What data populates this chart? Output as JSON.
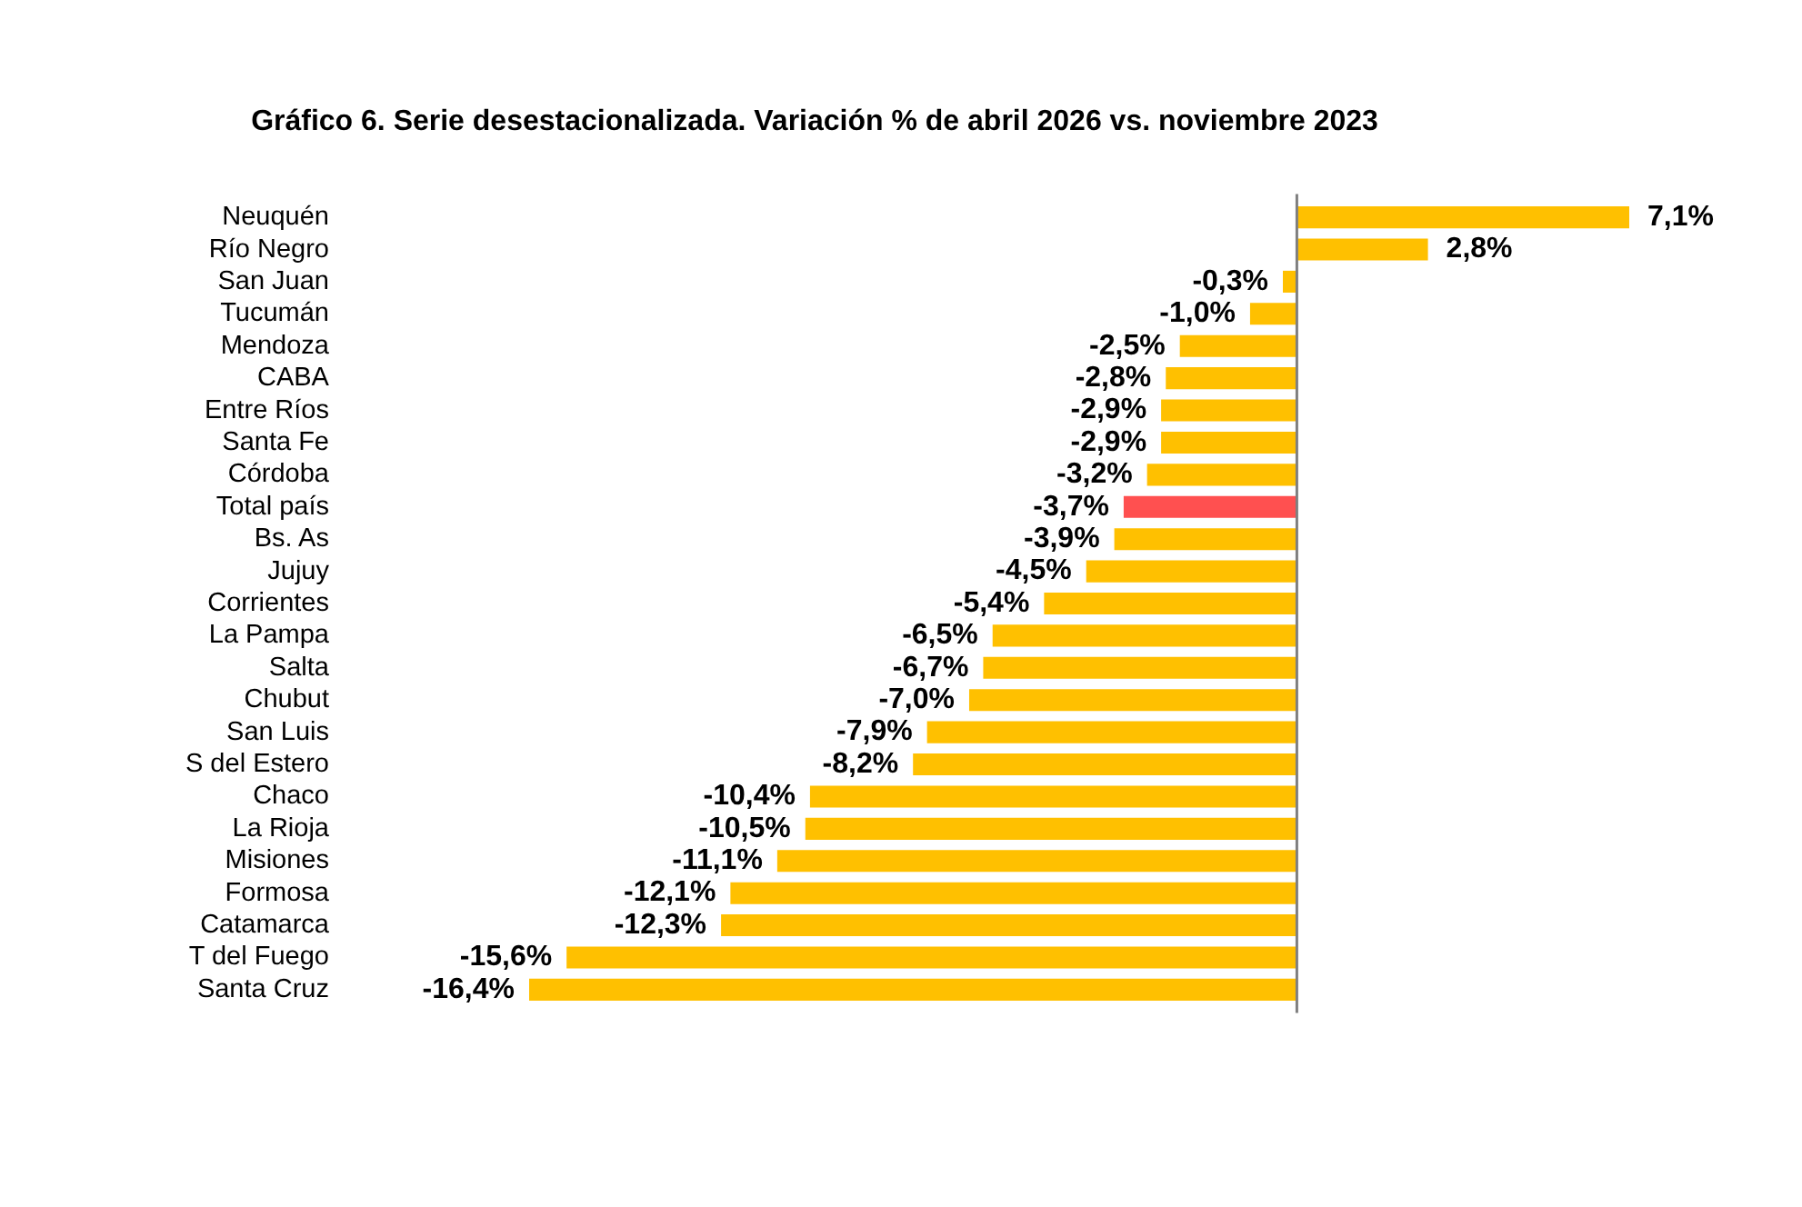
{
  "chart_data": {
    "type": "bar",
    "orientation": "horizontal",
    "title": "Gráfico 6. Serie desestacionalizada. Variación % de abril 2026 vs. noviembre 2023",
    "categories": [
      "Neuquén",
      "Río Negro",
      "San Juan",
      "Tucumán",
      "Mendoza",
      "CABA",
      "Entre Ríos",
      "Santa Fe",
      "Córdoba",
      "Total país",
      "Bs. As",
      "Jujuy",
      "Corrientes",
      "La Pampa",
      "Salta",
      "Chubut",
      "San Luis",
      "S del Estero",
      "Chaco",
      "La Rioja",
      "Misiones",
      "Formosa",
      "Catamarca",
      "T del Fuego",
      "Santa Cruz"
    ],
    "values": [
      7.1,
      2.8,
      -0.3,
      -1.0,
      -2.5,
      -2.8,
      -2.9,
      -2.9,
      -3.2,
      -3.7,
      -3.9,
      -4.5,
      -5.4,
      -6.5,
      -6.7,
      -7.0,
      -7.9,
      -8.2,
      -10.4,
      -10.5,
      -11.1,
      -12.1,
      -12.3,
      -15.6,
      -16.4
    ],
    "value_labels": [
      "7,1%",
      "2,8%",
      "-0,3%",
      "-1,0%",
      "-2,5%",
      "-2,8%",
      "-2,9%",
      "-2,9%",
      "-3,2%",
      "-3,7%",
      "-3,9%",
      "-4,5%",
      "-5,4%",
      "-6,5%",
      "-6,7%",
      "-7,0%",
      "-7,9%",
      "-8,2%",
      "-10,4%",
      "-10,5%",
      "-11,1%",
      "-12,1%",
      "-12,3%",
      "-15,6%",
      "-16,4%"
    ],
    "colors": [
      "#ffc000",
      "#ffc000",
      "#ffc000",
      "#ffc000",
      "#ffc000",
      "#ffc000",
      "#ffc000",
      "#ffc000",
      "#ffc000",
      "#ff5050",
      "#ffc000",
      "#ffc000",
      "#ffc000",
      "#ffc000",
      "#ffc000",
      "#ffc000",
      "#ffc000",
      "#ffc000",
      "#ffc000",
      "#ffc000",
      "#ffc000",
      "#ffc000",
      "#ffc000",
      "#ffc000",
      "#ffc000"
    ]
  }
}
